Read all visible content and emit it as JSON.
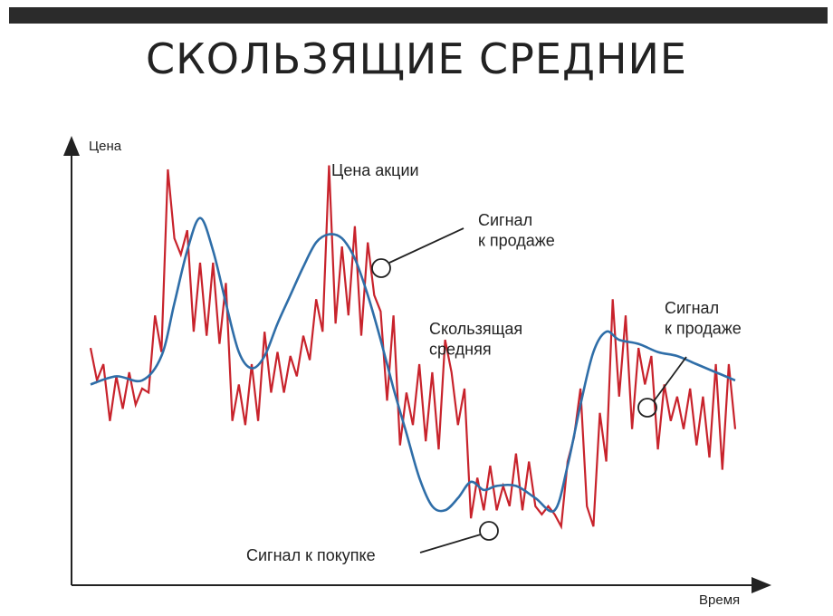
{
  "title": "СКОЛЬЗЯЩИЕ СРЕДНИЕ",
  "colors": {
    "price": "#c8232c",
    "ma": "#2f6ea8",
    "axis": "#222222",
    "bar": "#2b2b2b"
  },
  "chart_data": {
    "type": "line",
    "title": "СКОЛЬЗЯЩИЕ СРЕДНИЕ",
    "xlabel": "Время",
    "ylabel": "Цена",
    "grid": false,
    "xlim": [
      0,
      100
    ],
    "ylim": [
      0,
      100
    ],
    "series": [
      {
        "name": "Цена акции",
        "x": [
          0,
          1,
          2,
          3,
          4,
          5,
          6,
          7,
          8,
          9,
          10,
          11,
          12,
          13,
          14,
          15,
          16,
          17,
          18,
          19,
          20,
          21,
          22,
          23,
          24,
          25,
          26,
          27,
          28,
          29,
          30,
          31,
          32,
          33,
          34,
          35,
          36,
          37,
          38,
          39,
          40,
          41,
          42,
          43,
          44,
          45,
          46,
          47,
          48,
          49,
          50,
          51,
          52,
          53,
          54,
          55,
          56,
          57,
          58,
          59,
          60,
          61,
          62,
          63,
          64,
          65,
          66,
          67,
          68,
          69,
          70,
          71,
          72,
          73,
          74,
          75,
          76,
          77,
          78,
          79,
          80,
          81,
          82,
          83,
          84,
          85,
          86,
          87,
          88,
          89,
          90,
          91,
          92,
          93,
          94,
          95,
          96,
          97,
          98,
          99,
          100
        ],
        "y": [
          54,
          46,
          50,
          36,
          47,
          39,
          48,
          40,
          44,
          43,
          62,
          53,
          98,
          81,
          77,
          83,
          58,
          75,
          57,
          75,
          55,
          70,
          36,
          45,
          35,
          50,
          36,
          58,
          43,
          53,
          43,
          52,
          47,
          57,
          51,
          66,
          58,
          99,
          60,
          79,
          62,
          84,
          57,
          80,
          67,
          63,
          41,
          62,
          30,
          43,
          35,
          50,
          31,
          48,
          29,
          56,
          48,
          35,
          44,
          12,
          22,
          14,
          25,
          14,
          20,
          15,
          28,
          14,
          26,
          15,
          13,
          15,
          13,
          10,
          26,
          32,
          44,
          15,
          10,
          38,
          26,
          66,
          42,
          62,
          34,
          54,
          45,
          52,
          29,
          45,
          36,
          42,
          34,
          44,
          30,
          42,
          27,
          50,
          24,
          50,
          34
        ]
      },
      {
        "name": "Скользящая средняя",
        "x": [
          0,
          4,
          8,
          11,
          13,
          15,
          17,
          19,
          21,
          23,
          25,
          27,
          29,
          31,
          33,
          35,
          37,
          39,
          41,
          43,
          45,
          47,
          49,
          51,
          53,
          55,
          57,
          59,
          61,
          63,
          66,
          69,
          72,
          74,
          76,
          78,
          80,
          82,
          85,
          88,
          91,
          94,
          97,
          100
        ],
        "y": [
          45,
          47,
          46,
          52,
          65,
          78,
          86,
          78,
          65,
          53,
          49,
          52,
          60,
          67,
          74,
          80,
          82,
          81,
          76,
          67,
          56,
          44,
          33,
          22,
          15,
          14,
          17,
          21,
          19,
          20,
          20,
          17,
          14,
          25,
          40,
          53,
          58,
          56,
          55,
          53,
          52,
          50,
          48,
          46
        ]
      }
    ],
    "annotations": [
      {
        "text": "Цена акции"
      },
      {
        "text": "Сигнал\nк продаже"
      },
      {
        "text": "Скользящая\nсредняя"
      },
      {
        "text": "Сигнал\nк продаже"
      },
      {
        "text": "Сигнал к покупке"
      }
    ]
  }
}
